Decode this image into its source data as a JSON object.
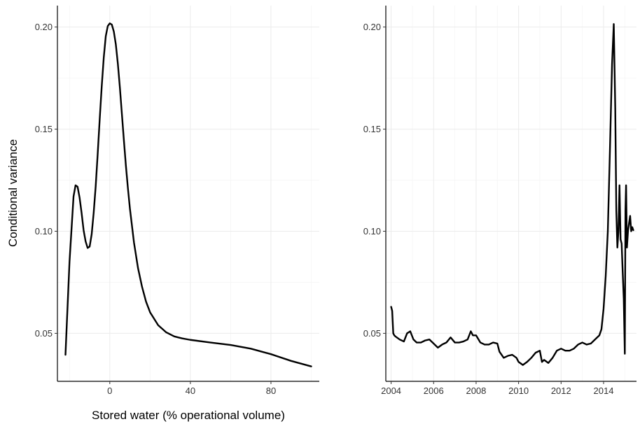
{
  "chart_data": [
    {
      "type": "line",
      "xlabel": "Stored water (% operational volume)",
      "ylabel": "Conditional variance",
      "xlim": [
        -26,
        104
      ],
      "ylim": [
        0.0265,
        0.2105
      ],
      "x_ticks": [
        "0",
        "40",
        "80"
      ],
      "y_ticks": [
        "0.05",
        "0.10",
        "0.15",
        "0.20"
      ],
      "grid": true,
      "series": [
        {
          "x": [
            -22,
            -20,
            -18,
            -17,
            -16,
            -15,
            -14,
            -13,
            -12,
            -11,
            -10,
            -9,
            -8,
            -7,
            -6,
            -5,
            -4,
            -3,
            -2,
            -1,
            0,
            1,
            2,
            3,
            4,
            5,
            6,
            7,
            8,
            9,
            10,
            12,
            14,
            16,
            18,
            20,
            24,
            28,
            32,
            36,
            40,
            50,
            60,
            70,
            80,
            90,
            100
          ],
          "y": [
            0.0395,
            0.085,
            0.117,
            0.1225,
            0.1218,
            0.1165,
            0.109,
            0.1005,
            0.095,
            0.0918,
            0.0925,
            0.0985,
            0.109,
            0.122,
            0.138,
            0.155,
            0.171,
            0.185,
            0.1955,
            0.2005,
            0.2018,
            0.2012,
            0.1978,
            0.1915,
            0.182,
            0.1705,
            0.1575,
            0.1445,
            0.132,
            0.121,
            0.111,
            0.0945,
            0.082,
            0.0728,
            0.0655,
            0.0603,
            0.054,
            0.0505,
            0.0485,
            0.0475,
            0.0468,
            0.0455,
            0.0443,
            0.0425,
            0.0398,
            0.0365,
            0.0338
          ]
        }
      ]
    },
    {
      "type": "line",
      "xlabel": "",
      "ylabel": "",
      "xlim": [
        2003.75,
        2015.55
      ],
      "ylim": [
        0.0265,
        0.2105
      ],
      "x_ticks": [
        "2004",
        "2006",
        "2008",
        "2010",
        "2012",
        "2014"
      ],
      "y_ticks": [
        "0.05",
        "0.10",
        "0.15",
        "0.20"
      ],
      "grid": true,
      "series": [
        {
          "x": [
            2004.0,
            2004.05,
            2004.1,
            2004.15,
            2004.2,
            2004.4,
            2004.6,
            2004.75,
            2004.9,
            2005.05,
            2005.2,
            2005.4,
            2005.6,
            2005.8,
            2006.0,
            2006.2,
            2006.4,
            2006.6,
            2006.8,
            2007.0,
            2007.2,
            2007.4,
            2007.6,
            2007.75,
            2007.85,
            2008.0,
            2008.2,
            2008.4,
            2008.6,
            2008.8,
            2009.0,
            2009.1,
            2009.3,
            2009.5,
            2009.7,
            2009.9,
            2010.0,
            2010.2,
            2010.4,
            2010.6,
            2010.8,
            2011.0,
            2011.1,
            2011.2,
            2011.4,
            2011.6,
            2011.8,
            2012.0,
            2012.2,
            2012.4,
            2012.6,
            2012.8,
            2013.0,
            2013.2,
            2013.4,
            2013.6,
            2013.8,
            2013.9,
            2014.0,
            2014.1,
            2014.2,
            2014.3,
            2014.4,
            2014.48,
            2014.55,
            2014.6,
            2014.65,
            2014.7,
            2014.75,
            2014.8,
            2014.85,
            2014.9,
            2014.95,
            2015.0,
            2015.03,
            2015.06,
            2015.1,
            2015.15,
            2015.2,
            2015.25,
            2015.3,
            2015.35,
            2015.4
          ],
          "y": [
            0.063,
            0.061,
            0.05,
            0.049,
            0.0485,
            0.047,
            0.046,
            0.05,
            0.051,
            0.047,
            0.0455,
            0.0455,
            0.0465,
            0.047,
            0.045,
            0.043,
            0.0445,
            0.0455,
            0.048,
            0.0455,
            0.0455,
            0.046,
            0.047,
            0.051,
            0.049,
            0.049,
            0.0455,
            0.0445,
            0.0445,
            0.0455,
            0.045,
            0.041,
            0.038,
            0.039,
            0.0395,
            0.038,
            0.036,
            0.0345,
            0.036,
            0.038,
            0.0405,
            0.0415,
            0.036,
            0.037,
            0.0355,
            0.038,
            0.0415,
            0.0425,
            0.0415,
            0.0415,
            0.0425,
            0.0445,
            0.0455,
            0.0445,
            0.045,
            0.047,
            0.049,
            0.052,
            0.062,
            0.078,
            0.1,
            0.14,
            0.182,
            0.2015,
            0.16,
            0.11,
            0.092,
            0.1,
            0.1225,
            0.096,
            0.094,
            0.08,
            0.067,
            0.04,
            0.11,
            0.1225,
            0.092,
            0.1,
            0.104,
            0.1075,
            0.1,
            0.102,
            0.1005
          ]
        }
      ]
    }
  ]
}
